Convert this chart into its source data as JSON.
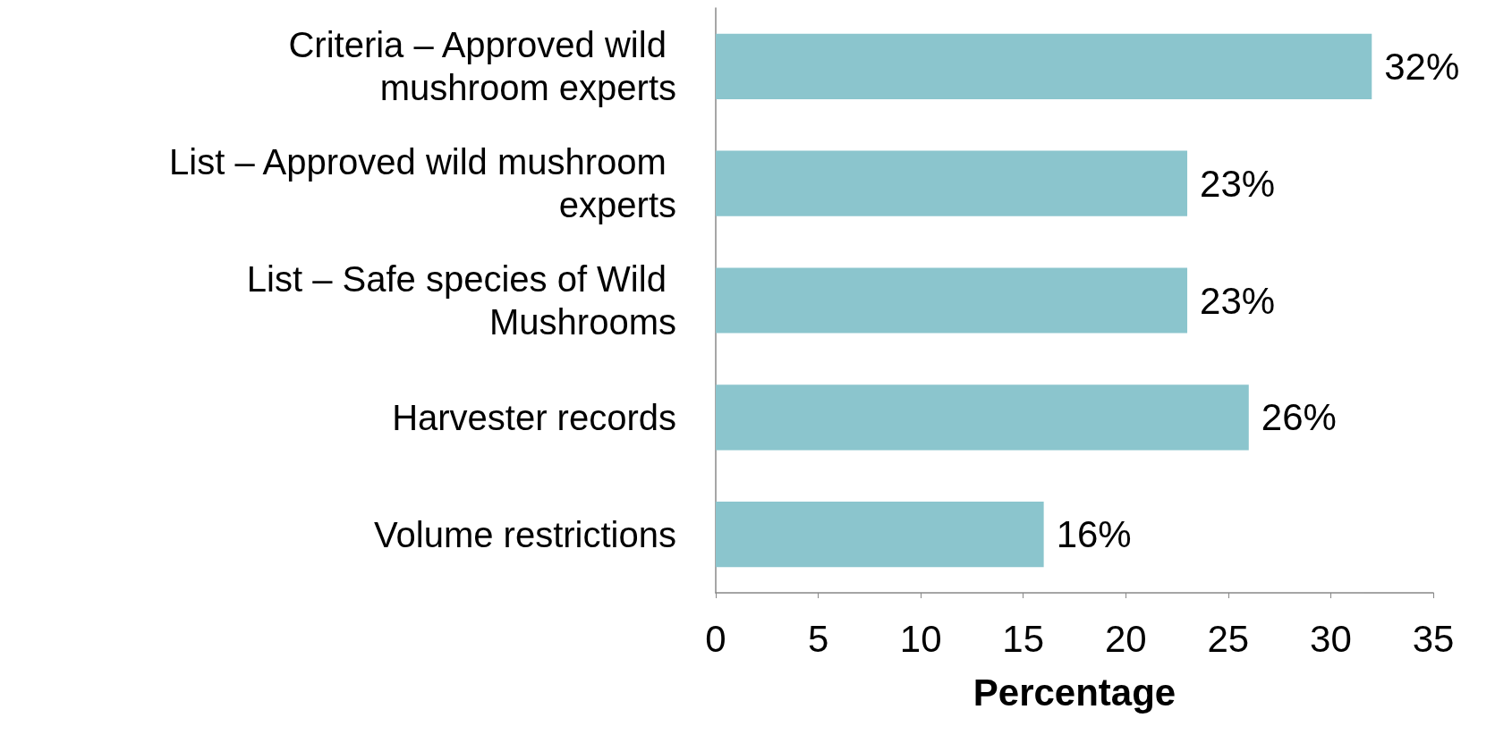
{
  "chart_data": {
    "type": "bar",
    "orientation": "horizontal",
    "xlabel": "Percentage",
    "categories": [
      "Criteria – Approved wild mushroom experts",
      "List – Approved wild mushroom experts",
      "List – Safe species of Wild Mushrooms",
      "Harvester records",
      "Volume restrictions"
    ],
    "values": [
      32,
      23,
      23,
      26,
      16
    ],
    "value_labels": [
      "32%",
      "23%",
      "23%",
      "26%",
      "16%"
    ],
    "color": "#8bc5cd",
    "xlim": [
      0,
      35
    ],
    "xticks": [
      0,
      5,
      10,
      15,
      20,
      25,
      30,
      35
    ],
    "grid": false
  }
}
